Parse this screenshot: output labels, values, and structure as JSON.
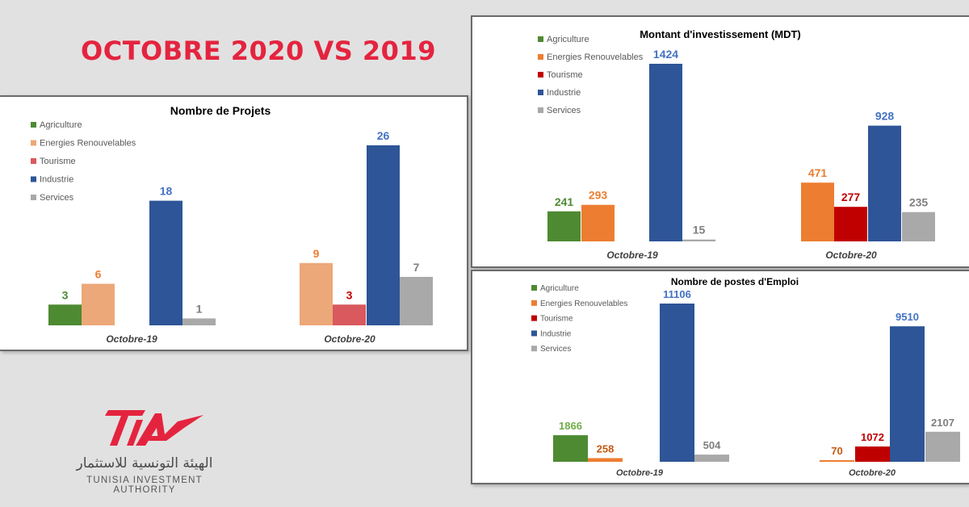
{
  "headline": "OCTOBRE 2020 VS 2019",
  "logo": {
    "mark": "TIA",
    "arabic": "الهيئة التونسية للاستثمار",
    "english": "TUNISIA INVESTMENT AUTHORITY"
  },
  "colors": {
    "headline": "#e4243f",
    "logo": "#e4243f"
  },
  "chart_data": [
    {
      "type": "bar",
      "title": "Nombre de Projets",
      "categories": [
        "Octobre-19",
        "Octobre-20"
      ],
      "legend_position": "top-left",
      "series": [
        {
          "name": "Agriculture",
          "color": "#4e8a32",
          "label_color": "#4e8a32",
          "values": [
            3,
            null
          ]
        },
        {
          "name": "Energies Renouvelables",
          "color": "#eca878",
          "label_color": "#ed7d31",
          "values": [
            6,
            9
          ]
        },
        {
          "name": "Tourisme",
          "color": "#d9595e",
          "label_color": "#c00000",
          "values": [
            null,
            3
          ]
        },
        {
          "name": "Industrie",
          "color": "#2e5597",
          "label_color": "#4472c4",
          "values": [
            18,
            26
          ]
        },
        {
          "name": "Services",
          "color": "#a9a9a9",
          "label_color": "#7f7f7f",
          "values": [
            1,
            7
          ]
        }
      ]
    },
    {
      "type": "bar",
      "title": "Montant d'investissement (MDT)",
      "categories": [
        "Octobre-19",
        "Octobre-20"
      ],
      "legend_position": "top-left",
      "series": [
        {
          "name": "Agriculture",
          "color": "#4e8a32",
          "label_color": "#4e8a32",
          "values": [
            241,
            null
          ]
        },
        {
          "name": "Energies Renouvelables",
          "color": "#ed7d31",
          "label_color": "#ed7d31",
          "values": [
            293,
            471
          ]
        },
        {
          "name": "Tourisme",
          "color": "#c00000",
          "label_color": "#c00000",
          "values": [
            null,
            277
          ]
        },
        {
          "name": "Industrie",
          "color": "#2e5597",
          "label_color": "#4472c4",
          "values": [
            1424,
            928
          ]
        },
        {
          "name": "Services",
          "color": "#a9a9a9",
          "label_color": "#7f7f7f",
          "values": [
            15,
            235
          ]
        }
      ]
    },
    {
      "type": "bar",
      "title": "Nombre de postes d'Emploi",
      "categories": [
        "Octobre-19",
        "Octobre-20"
      ],
      "legend_position": "top-left",
      "series": [
        {
          "name": "Agriculture",
          "color": "#4e8a32",
          "label_color": "#70ad47",
          "values": [
            1866,
            null
          ]
        },
        {
          "name": "Energies Renouvelables",
          "color": "#ed7d31",
          "label_color": "#c55a11",
          "values": [
            258,
            70
          ]
        },
        {
          "name": "Tourisme",
          "color": "#c00000",
          "label_color": "#c00000",
          "values": [
            null,
            1072
          ]
        },
        {
          "name": "Industrie",
          "color": "#2e5597",
          "label_color": "#4472c4",
          "values": [
            11106,
            9510
          ]
        },
        {
          "name": "Services",
          "color": "#a9a9a9",
          "label_color": "#7f7f7f",
          "values": [
            504,
            2107
          ]
        }
      ]
    }
  ]
}
